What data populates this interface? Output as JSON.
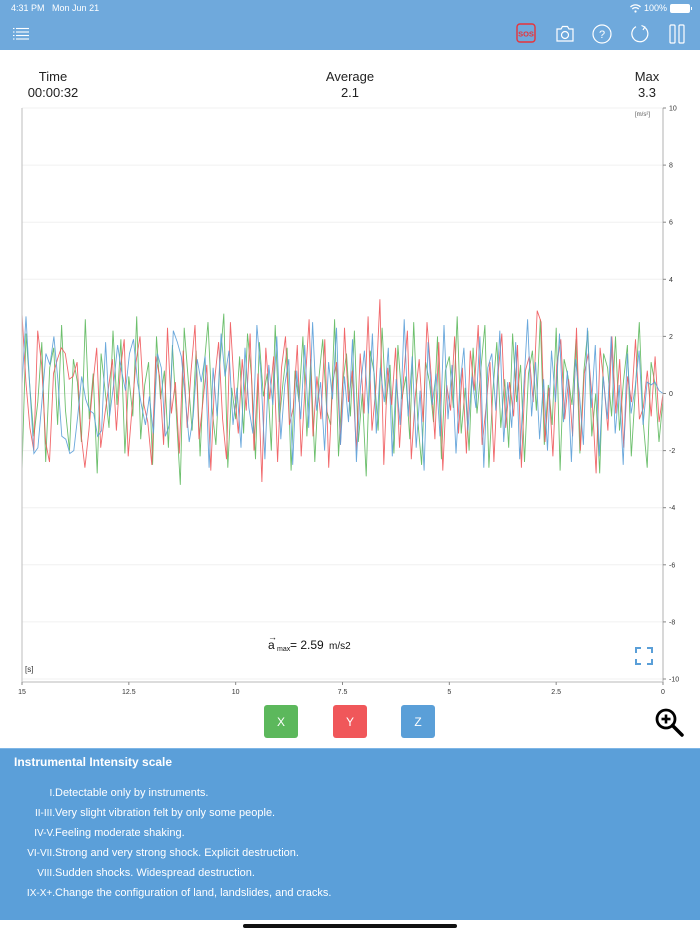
{
  "status_bar": {
    "time": "4:31 PM",
    "date": "Mon Jun 21",
    "battery": "100%"
  },
  "toolbar": {
    "menu_icon": "list-icon",
    "buttons": [
      {
        "name": "sos-button",
        "label": "SOS",
        "color": "#e8333a"
      },
      {
        "name": "camera-button",
        "icon": "camera-icon"
      },
      {
        "name": "help-button",
        "icon": "question-icon",
        "label": "?"
      },
      {
        "name": "reset-button",
        "icon": "refresh-icon"
      },
      {
        "name": "pause-button",
        "icon": "pause-icon"
      }
    ]
  },
  "stats": {
    "time_label": "Time",
    "time_value": "00:00:32",
    "avg_label": "Average",
    "avg_value": "2.1",
    "max_label": "Max",
    "max_value": "3.3"
  },
  "chart_data": {
    "type": "line",
    "title": "",
    "xlabel": "[s]",
    "ylabel": "[m/s²]",
    "xlim": [
      15,
      0
    ],
    "ylim": [
      -10,
      10
    ],
    "x_ticks": [
      "15",
      "12.5",
      "10",
      "7.5",
      "5",
      "2.5",
      "0"
    ],
    "y_ticks": [
      "10",
      "8",
      "6",
      "4",
      "2",
      "0",
      "-2",
      "-4",
      "-6",
      "-8",
      "-10"
    ],
    "grid": true,
    "annotation": {
      "text_main": "a",
      "subscript": "max",
      "value": "= 2.59",
      "unit": "m/s2"
    },
    "series": [
      {
        "name": "X",
        "color": "#5cb85c",
        "values": [
          -2.7,
          2.1,
          0.2,
          -1.5,
          -0.3,
          1.8,
          -2.4,
          0.9,
          1.6,
          -1.1,
          2.4,
          -0.6,
          -2.0,
          1.2,
          0.4,
          -1.7,
          2.6,
          -0.9,
          0.7,
          -2.8,
          1.4,
          0.1,
          -1.2,
          2.2,
          -0.4,
          1.9,
          -2.1,
          0.6,
          -0.8,
          2.7,
          -1.6,
          0.3,
          1.1,
          -2.5,
          2.0,
          -0.2,
          0.8,
          -1.9,
          1.7,
          -0.7,
          -3.2,
          2.3,
          0.5,
          -1.3,
          1.5,
          -2.2,
          0.9,
          2.5,
          -0.5,
          -1.8,
          1.0,
          2.8,
          -2.6,
          0.2,
          -0.9,
          1.3,
          -1.4,
          2.1,
          0.6,
          -2.3,
          1.8,
          -0.1,
          0.7,
          -2.0,
          2.4,
          -1.0,
          0.4,
          1.6,
          -2.7,
          0.8,
          -0.3,
          2.0,
          -1.5,
          1.2,
          -2.4,
          0.5,
          1.9,
          -0.6,
          -1.1,
          2.6,
          -2.2,
          0.3,
          1.4,
          -0.8,
          2.2,
          -1.7,
          0.0,
          -2.9,
          1.5,
          0.7,
          -1.3,
          2.3,
          -0.4,
          1.0,
          -2.1,
          1.7,
          -0.2,
          0.6,
          -1.6,
          2.5,
          -0.9,
          -2.5,
          1.1,
          0.4,
          -1.0,
          2.0,
          -2.3,
          0.8,
          1.3,
          -0.5,
          2.7,
          -1.4,
          0.2,
          -2.0,
          1.6,
          -0.7,
          0.9,
          2.4,
          -2.6,
          0.1,
          1.8,
          -1.2,
          0.5,
          -1.9,
          2.1,
          -0.3,
          1.0,
          -2.4,
          0.7,
          1.5,
          -0.6,
          2.6,
          -1.8,
          0.3,
          -1.1,
          2.3,
          -2.7,
          1.2,
          0.6,
          -0.4,
          1.9,
          -2.1,
          0.8,
          2.2,
          -1.5,
          0.0,
          -2.8,
          1.4,
          0.9,
          -0.8,
          2.0,
          -1.3,
          0.4,
          1.7,
          -2.2,
          0.1,
          2.5,
          -1.0,
          -2.6,
          1.1,
          0.3,
          -1.7,
          -0.2
        ]
      },
      {
        "name": "Y",
        "color": "#f0575a",
        "values": [
          2.8,
          0.4,
          -1.2,
          -2.0,
          2.2,
          1.0,
          -1.7,
          -2.4,
          0.7,
          1.2,
          1.6,
          1.4,
          0.5,
          0.6,
          1.1,
          -1.4,
          -2.6,
          -1.3,
          0.3,
          1.6,
          -1.9,
          -0.8,
          0.2,
          1.2,
          -1.3,
          0.8,
          1.9,
          -2.2,
          -0.5,
          1.1,
          2.0,
          -0.4,
          -1.0,
          -2.5,
          1.3,
          0.6,
          -1.8,
          2.3,
          -0.7,
          0.4,
          -2.1,
          1.5,
          -1.2,
          0.8,
          2.4,
          -1.6,
          -0.3,
          1.0,
          -2.7,
          0.5,
          1.8,
          -0.9,
          -2.3,
          2.5,
          0.1,
          -1.4,
          1.2,
          -0.6,
          2.1,
          -2.0,
          0.7,
          -3.1,
          1.6,
          -0.2,
          1.3,
          -2.4,
          0.9,
          2.0,
          -1.1,
          -0.5,
          1.7,
          -2.2,
          0.3,
          2.6,
          -1.5,
          0.6,
          -0.9,
          1.9,
          -2.6,
          0.4,
          1.1,
          -1.8,
          2.3,
          -0.3,
          0.8,
          -2.0,
          1.4,
          -0.7,
          2.7,
          -1.3,
          0.2,
          3.3,
          -2.5,
          0.9,
          -0.4,
          1.6,
          -1.9,
          0.5,
          2.2,
          -2.3,
          -0.1,
          1.2,
          -1.0,
          2.5,
          0.7,
          -1.6,
          1.8,
          -2.7,
          0.3,
          -0.6,
          2.0,
          -1.4,
          0.9,
          -2.1,
          1.5,
          0.1,
          2.4,
          -1.8,
          -0.5,
          1.1,
          -2.4,
          0.6,
          2.1,
          -1.2,
          0.4,
          -0.8,
          1.7,
          -2.6,
          0.8,
          1.3,
          -0.3,
          2.9,
          2.5,
          -1.7,
          0.2,
          -2.2,
          1.0,
          1.9,
          -0.9,
          0.5,
          -1.5,
          2.3,
          -2.0,
          0.7,
          1.4,
          -0.2,
          -2.8,
          1.6,
          0.3,
          -1.3,
          2.0,
          -0.7,
          1.2,
          -1.9,
          0.6,
          -0.3,
          1.9,
          -0.9,
          -0.5,
          0.8,
          -0.8,
          1.3,
          -1.0,
          0.0
        ]
      },
      {
        "name": "Z",
        "color": "#5a9fd8",
        "values": [
          0.3,
          2.7,
          0.1,
          -2.1,
          -1.9,
          -0.3,
          1.4,
          1.0,
          2.0,
          0.5,
          -1.5,
          -1.6,
          -2.1,
          -2.0,
          -0.8,
          0.6,
          -0.2,
          -0.6,
          -0.7,
          -1.5,
          -1.3,
          1.8,
          -0.8,
          0.3,
          1.7,
          0.8,
          0.1,
          1.4,
          1.9,
          0.4,
          -0.4,
          -1.1,
          -0.1,
          -1.4,
          1.4,
          0.9,
          -1.5,
          -1.1,
          2.2,
          1.8,
          1.3,
          -0.1,
          -1.7,
          -0.8,
          1.2,
          0.4,
          1.3,
          -2.6,
          0.9,
          -0.8,
          2.1,
          0.6,
          1.5,
          -1.1,
          0.2,
          -1.9,
          1.6,
          -0.5,
          -1.4,
          2.4,
          0.7,
          -2.3,
          1.0,
          -0.4,
          2.0,
          -1.6,
          0.3,
          1.2,
          -2.5,
          0.8,
          -0.9,
          1.7,
          -1.2,
          2.5,
          -0.6,
          0.4,
          -2.0,
          1.1,
          -0.2,
          2.3,
          -1.8,
          0.6,
          -1.0,
          1.9,
          -2.4,
          0.2,
          1.5,
          -0.7,
          2.1,
          -1.4,
          0.9,
          -0.3,
          1.6,
          -2.2,
          0.5,
          -1.1,
          2.6,
          -0.8,
          1.3,
          -1.9,
          0.1,
          -2.7,
          1.8,
          -0.4,
          0.7,
          -1.5,
          2.4,
          -0.9,
          1.0,
          -2.1,
          0.3,
          1.6,
          -1.3,
          0.6,
          -0.5,
          2.0,
          -2.6,
          0.9,
          1.4,
          -0.6,
          2.2,
          -1.7,
          0.4,
          -1.2,
          1.8,
          -2.3,
          0.2,
          2.6,
          -0.8,
          1.1,
          -1.6,
          0.5,
          -2.0,
          1.5,
          -0.3,
          2.1,
          -1.0,
          0.8,
          -2.4,
          1.2,
          0.0,
          -1.8,
          2.3,
          -0.5,
          1.7,
          -2.2,
          0.6,
          -0.9,
          2.0,
          -1.4,
          0.3,
          -2.5,
          1.4,
          -0.7,
          0.2,
          1.5,
          -1.1,
          0.4,
          0.3,
          0.4,
          0.1,
          0.0
        ]
      }
    ]
  },
  "axis_buttons": [
    {
      "label": "X",
      "color": "#5cb85c"
    },
    {
      "label": "Y",
      "color": "#f0575a"
    },
    {
      "label": "Z",
      "color": "#5a9fd8"
    }
  ],
  "zoom_icon": "zoom-in-icon",
  "fullscreen_icon": "fullscreen-icon",
  "intensity_scale": {
    "title": "Instrumental Intensity scale",
    "rows": [
      {
        "level": "I.",
        "text": "Detectable only by instruments."
      },
      {
        "level": "II-III.",
        "text": "Very slight vibration felt by only some people."
      },
      {
        "level": "IV-V.",
        "text": "Feeling moderate shaking."
      },
      {
        "level": "VI-VII.",
        "text": "Strong and very strong shock. Explicit destruction."
      },
      {
        "level": "VIII.",
        "text": "Sudden shocks. Widespread destruction."
      },
      {
        "level": "IX-X+.",
        "text": "Change the configuration of land, landslides, and cracks."
      }
    ]
  }
}
